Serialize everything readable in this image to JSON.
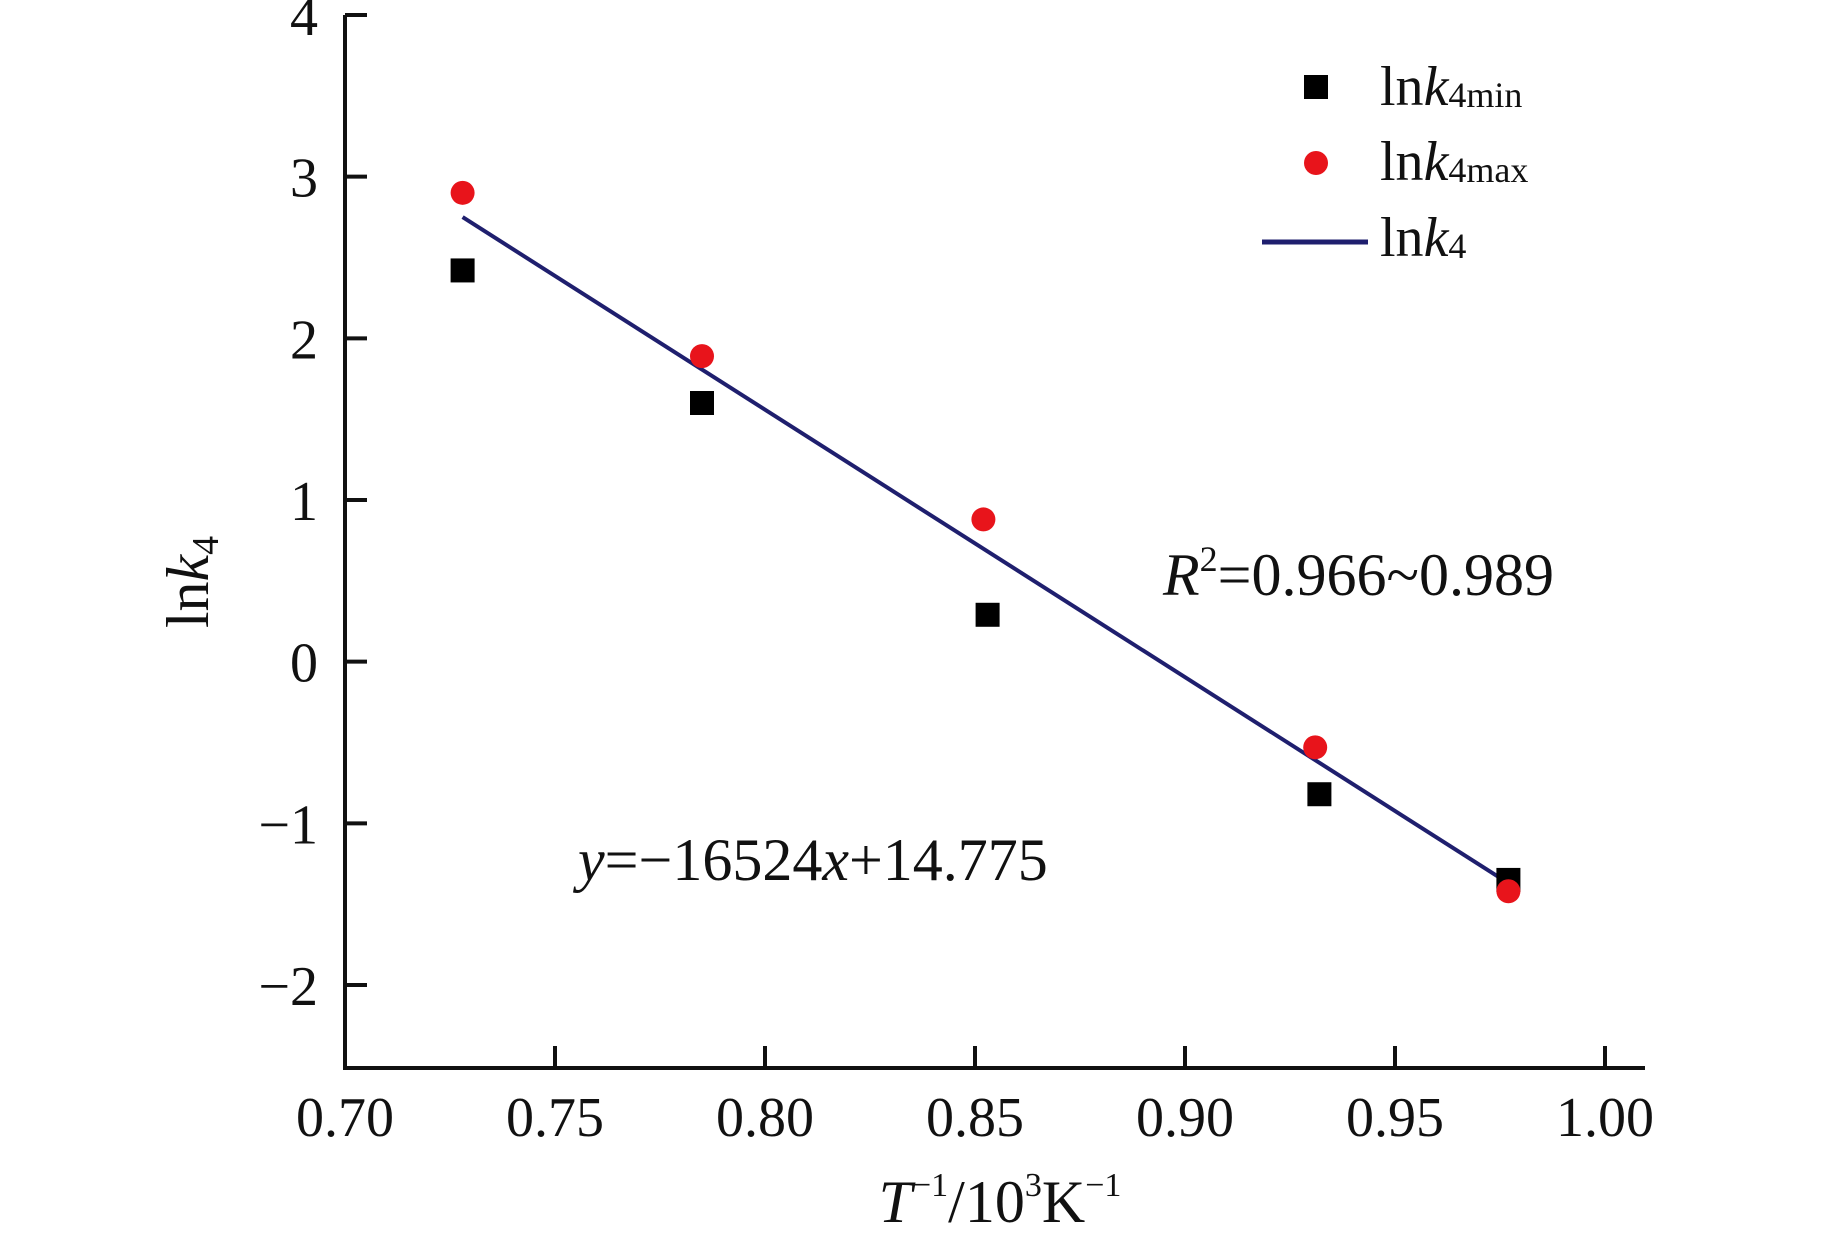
{
  "chart_data": {
    "type": "scatter",
    "title": "",
    "xlabel": {
      "base": "T",
      "exp1": "−1",
      "mid": "/10",
      "exp2": "3",
      "unit": "K",
      "exp3": "−1"
    },
    "ylabel": {
      "pre": "ln",
      "italic": "k",
      "sub": "4"
    },
    "xlim": [
      0.7,
      1.0
    ],
    "ylim": [
      -2.5,
      4
    ],
    "x_ticks": [
      0.7,
      0.75,
      0.8,
      0.85,
      0.9,
      0.95,
      1.0
    ],
    "x_tick_labels": [
      "0.70",
      "0.75",
      "0.80",
      "0.85",
      "0.90",
      "0.95",
      "1.00"
    ],
    "y_ticks": [
      -2,
      -1,
      0,
      1,
      2,
      3,
      4
    ],
    "y_tick_labels": [
      "−2",
      "−1",
      "0",
      "1",
      "2",
      "3",
      "4"
    ],
    "grid": false,
    "legend_position": "top-right",
    "series": [
      {
        "name": "lnk4min",
        "label_pre": "ln",
        "label_italic": "k",
        "label_sub": "4min",
        "marker": "square",
        "color": "#000000",
        "x": [
          0.728,
          0.785,
          0.853,
          0.932,
          0.977
        ],
        "y": [
          2.42,
          1.6,
          0.29,
          -0.82,
          -1.35
        ]
      },
      {
        "name": "lnk4max",
        "label_pre": "ln",
        "label_italic": "k",
        "label_sub": "4max",
        "marker": "circle",
        "color": "#e8141b",
        "x": [
          0.728,
          0.785,
          0.852,
          0.931,
          0.977
        ],
        "y": [
          2.9,
          1.89,
          0.88,
          -0.53,
          -1.42
        ]
      },
      {
        "name": "lnk4",
        "label_pre": "ln",
        "label_italic": "k",
        "label_sub": "4",
        "marker": "line",
        "color": "#1f1f6e",
        "x": [
          0.728,
          0.977
        ],
        "y": [
          2.75,
          -1.37
        ]
      }
    ],
    "annotations": {
      "r2": {
        "italic": "R",
        "sup": "2",
        "text": "=0.966~0.989"
      },
      "equation": {
        "italic_y": "y",
        "mid": "=−16524",
        "italic_x": "x",
        "tail": "+14.775"
      }
    }
  }
}
